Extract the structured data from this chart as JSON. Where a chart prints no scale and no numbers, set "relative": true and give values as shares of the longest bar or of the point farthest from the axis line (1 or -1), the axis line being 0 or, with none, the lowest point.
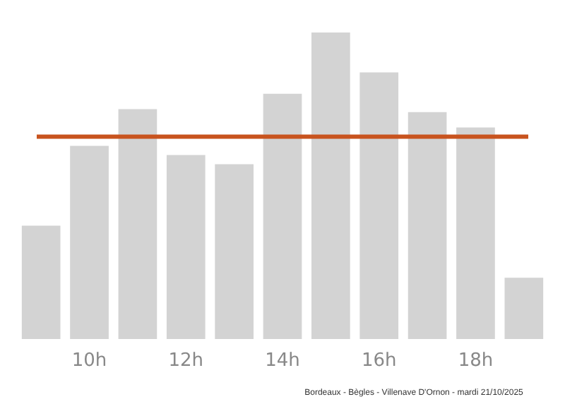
{
  "chart_data": {
    "type": "bar",
    "relative": true,
    "categories": [
      null,
      "10h",
      null,
      "12h",
      null,
      "14h",
      null,
      "16h",
      null,
      "18h",
      null
    ],
    "values": [
      0.37,
      0.63,
      0.75,
      0.6,
      0.57,
      0.8,
      1,
      0.87,
      0.74,
      0.69,
      0.2
    ],
    "color": "#d3d3d3",
    "ref_lines": [
      {
        "axis": "y",
        "value": 0.66,
        "color": "#c8531e"
      }
    ],
    "annotations": [
      "Bordeaux - Bègles - Villenave D'Ornon - mardi 21/10/2025"
    ],
    "grid": false,
    "legend": false
  }
}
